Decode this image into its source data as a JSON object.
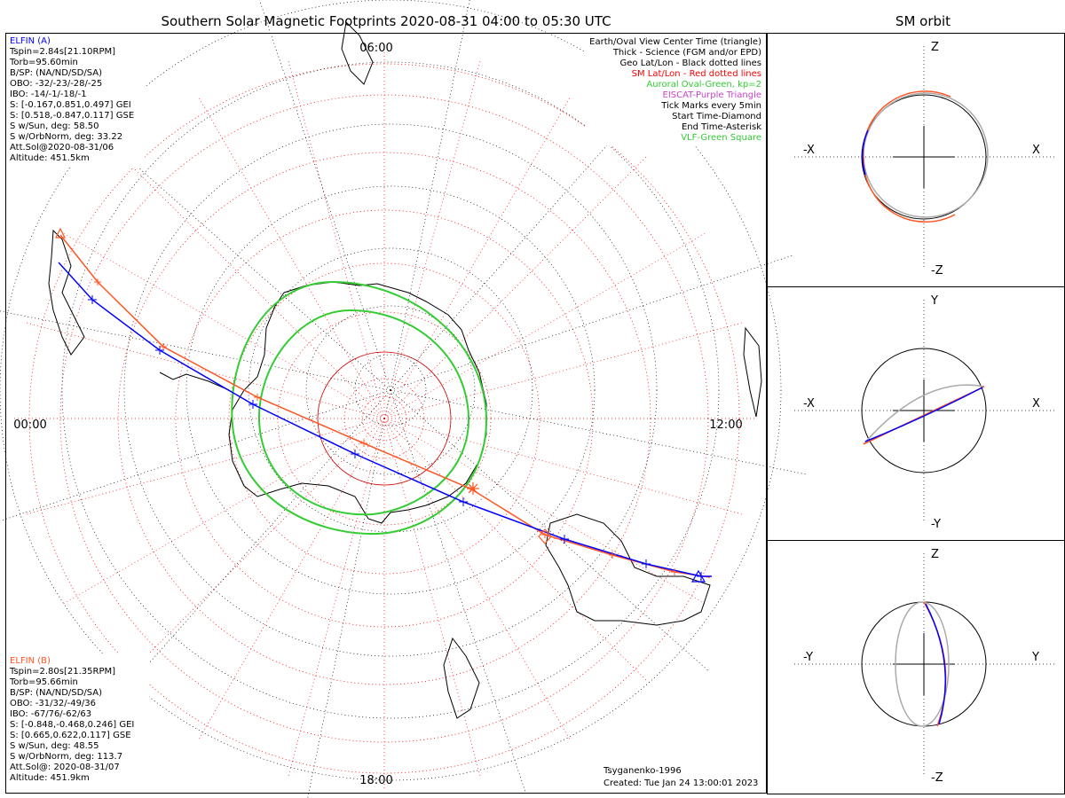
{
  "title": "Southern Solar Magnetic Footprints 2020-08-31 04:00 to 05:30 UTC",
  "orbit_title": "SM orbit",
  "mlt_labels": {
    "top": "06:00",
    "left": "00:00",
    "right": "12:00",
    "bottom": "18:00"
  },
  "legend": [
    {
      "text": "Earth/Oval View Center Time (triangle)",
      "color": "#000000"
    },
    {
      "text": "Thick - Science (FGM and/or EPD)",
      "color": "#000000"
    },
    {
      "text": "Geo Lat/Lon - Black dotted lines",
      "color": "#000000"
    },
    {
      "text": "SM Lat/Lon - Red dotted lines",
      "color": "#ff0000"
    },
    {
      "text": "Auroral Oval-Green, kp=2",
      "color": "#33cc33"
    },
    {
      "text": "EISCAT-Purple Triangle",
      "color": "#cc44cc"
    },
    {
      "text": "Tick Marks every 5min",
      "color": "#000000"
    },
    {
      "text": "Start Time-Diamond",
      "color": "#000000"
    },
    {
      "text": "End Time-Asterisk",
      "color": "#000000"
    },
    {
      "text": "VLF-Green Square",
      "color": "#33cc33"
    }
  ],
  "probe_a": {
    "name": "ELFIN (A)",
    "color": "#0000ff",
    "lines": [
      "Tspin=2.84s[21.10RPM]",
      "Torb=95.60min",
      "B/SP: (NA/ND/SD/SA)",
      "OBO: -32/-23/-28/-25",
      "IBO: -14/-1/-18/-1",
      "S: [-0.167,0.851,0.497] GEI",
      "S: [0.518,-0.847,0.117] GSE",
      "S w/Sun, deg: 58.50",
      "S w/OrbNorm, deg: 33.22",
      "Att.Sol@2020-08-31/06",
      "Altitude: 451.5km"
    ]
  },
  "probe_b": {
    "name": "ELFIN (B)",
    "color": "#ff5522",
    "lines": [
      "Tspin=2.80s[21.35RPM]",
      "Torb=95.66min",
      "B/SP: (NA/ND/SD/SA)",
      "OBO: -31/32/-49/36",
      "IBO: -67/76/-62/63",
      "S: [-0.848,-0.468,0.246] GEI",
      "S: [0.665,0.622,0.117] GSE",
      "S w/Sun, deg: 48.55",
      "S w/OrbNorm, deg: 113.7",
      "Att.Sol@: 2020-08-31/07",
      "Altitude: 451.9km"
    ]
  },
  "footer": {
    "model": "Tsyganenko-1996",
    "created": "Created: Tue Jan 24 13:00:01 2023"
  },
  "orbit_panels": [
    {
      "name": "xz",
      "up": "Z",
      "down": "-Z",
      "left": "-X",
      "right": "X"
    },
    {
      "name": "xy",
      "up": "Y",
      "down": "-Y",
      "left": "-X",
      "right": "X"
    },
    {
      "name": "yz",
      "up": "Z",
      "down": "-Z",
      "left": "-Y",
      "right": "Y"
    }
  ],
  "chart_data": {
    "type": "polar-map",
    "mlt_labels": [
      "06:00",
      "00:00",
      "12:00",
      "18:00"
    ],
    "series": [
      {
        "name": "ELFIN (A)",
        "color": "#0000ff"
      },
      {
        "name": "ELFIN (B)",
        "color": "#ff5522"
      }
    ]
  }
}
